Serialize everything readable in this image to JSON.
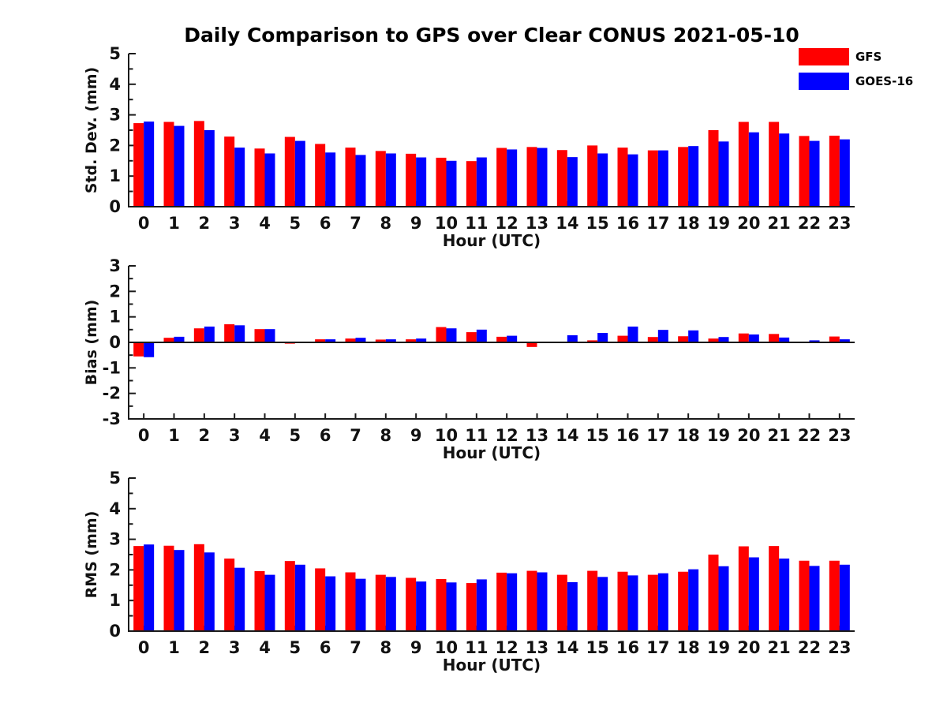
{
  "title": "Daily Comparison to GPS over Clear CONUS 2021-05-10",
  "legend": {
    "items": [
      {
        "label": "GFS",
        "color": "#ff0000"
      },
      {
        "label": "GOES-16",
        "color": "#0000ff"
      }
    ]
  },
  "chart_data": [
    {
      "id": "std-dev",
      "type": "bar",
      "ylabel": "Std. Dev. (mm)",
      "xlabel": "Hour (UTC)",
      "ylim": [
        0,
        5
      ],
      "yticks": [
        0,
        1,
        2,
        3,
        4,
        5
      ],
      "minor_tick_step": 0.5,
      "grid": false,
      "categories": [
        "0",
        "1",
        "2",
        "3",
        "4",
        "5",
        "6",
        "7",
        "8",
        "9",
        "10",
        "11",
        "12",
        "13",
        "14",
        "15",
        "16",
        "17",
        "18",
        "19",
        "20",
        "21",
        "22",
        "23"
      ],
      "series": [
        {
          "name": "GFS",
          "color": "#ff0000",
          "values": [
            2.73,
            2.77,
            2.8,
            2.29,
            1.9,
            2.28,
            2.05,
            1.93,
            1.82,
            1.73,
            1.6,
            1.49,
            1.92,
            1.95,
            1.85,
            2.0,
            1.93,
            1.84,
            1.95,
            2.5,
            2.77,
            2.77,
            2.31,
            2.32
          ]
        },
        {
          "name": "GOES-16",
          "color": "#0000ff",
          "values": [
            2.78,
            2.64,
            2.5,
            1.93,
            1.74,
            2.15,
            1.77,
            1.69,
            1.74,
            1.61,
            1.5,
            1.61,
            1.87,
            1.92,
            1.62,
            1.74,
            1.71,
            1.84,
            1.98,
            2.13,
            2.43,
            2.39,
            2.15,
            2.2
          ]
        }
      ]
    },
    {
      "id": "bias",
      "type": "bar",
      "ylabel": "Bias (mm)",
      "xlabel": "Hour (UTC)",
      "ylim": [
        -3,
        3
      ],
      "yticks": [
        -3,
        -2,
        -1,
        0,
        1,
        2,
        3
      ],
      "minor_tick_step": 0.5,
      "grid": false,
      "categories": [
        "0",
        "1",
        "2",
        "3",
        "4",
        "5",
        "6",
        "7",
        "8",
        "9",
        "10",
        "11",
        "12",
        "13",
        "14",
        "15",
        "16",
        "17",
        "18",
        "19",
        "20",
        "21",
        "22",
        "23"
      ],
      "series": [
        {
          "name": "GFS",
          "color": "#ff0000",
          "values": [
            -0.55,
            0.18,
            0.55,
            0.71,
            0.52,
            -0.05,
            0.12,
            0.15,
            0.11,
            0.12,
            0.6,
            0.4,
            0.22,
            -0.18,
            0.02,
            0.08,
            0.26,
            0.21,
            0.24,
            0.15,
            0.35,
            0.33,
            0.03,
            0.23
          ]
        },
        {
          "name": "GOES-16",
          "color": "#0000ff",
          "values": [
            -0.58,
            0.22,
            0.62,
            0.67,
            0.52,
            0.03,
            0.12,
            0.18,
            0.12,
            0.15,
            0.55,
            0.5,
            0.26,
            0.02,
            0.28,
            0.37,
            0.62,
            0.49,
            0.47,
            0.21,
            0.31,
            0.19,
            0.08,
            0.12
          ]
        }
      ]
    },
    {
      "id": "rms",
      "type": "bar",
      "ylabel": "RMS (mm)",
      "xlabel": "Hour (UTC)",
      "ylim": [
        0,
        5
      ],
      "yticks": [
        0,
        1,
        2,
        3,
        4,
        5
      ],
      "minor_tick_step": 0.5,
      "grid": false,
      "categories": [
        "0",
        "1",
        "2",
        "3",
        "4",
        "5",
        "6",
        "7",
        "8",
        "9",
        "10",
        "11",
        "12",
        "13",
        "14",
        "15",
        "16",
        "17",
        "18",
        "19",
        "20",
        "21",
        "22",
        "23"
      ],
      "series": [
        {
          "name": "GFS",
          "color": "#ff0000",
          "values": [
            2.78,
            2.79,
            2.84,
            2.37,
            1.96,
            2.29,
            2.05,
            1.92,
            1.84,
            1.74,
            1.7,
            1.57,
            1.91,
            1.97,
            1.84,
            1.97,
            1.94,
            1.84,
            1.94,
            2.5,
            2.77,
            2.78,
            2.3,
            2.3
          ]
        },
        {
          "name": "GOES-16",
          "color": "#0000ff",
          "values": [
            2.83,
            2.65,
            2.57,
            2.07,
            1.84,
            2.17,
            1.79,
            1.71,
            1.77,
            1.62,
            1.59,
            1.69,
            1.89,
            1.92,
            1.6,
            1.77,
            1.82,
            1.89,
            2.02,
            2.12,
            2.41,
            2.37,
            2.13,
            2.17
          ]
        }
      ]
    }
  ]
}
